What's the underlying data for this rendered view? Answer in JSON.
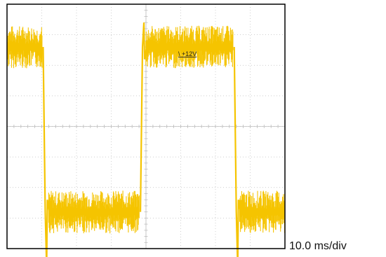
{
  "chart_data": {
    "type": "line",
    "title": "",
    "xlabel": "",
    "ylabel": "",
    "timebase": "10.0 ms/div",
    "grid": true,
    "divisions": {
      "horizontal": 8,
      "vertical": 8
    },
    "reference_marker": "\\ +12V",
    "series": [
      {
        "trace": "square wave",
        "color": "#f5c400",
        "x_unit": "div",
        "y_unit": "div",
        "levels": {
          "high": 6.6,
          "low": 1.2
        },
        "edges": [
          {
            "x": 1.1,
            "direction": "fall",
            "overshoot": -0.6
          },
          {
            "x": 3.9,
            "direction": "rise",
            "overshoot": 7.4
          },
          {
            "x": 6.6,
            "direction": "fall",
            "overshoot": -0.6
          }
        ],
        "noise_band": 0.7,
        "x_range": [
          0,
          8
        ],
        "start_level": "high"
      }
    ]
  },
  "colors": {
    "trace": "#f5c400",
    "grid": "#bdbdbd",
    "frame": "#000000",
    "background": "#ffffff"
  }
}
